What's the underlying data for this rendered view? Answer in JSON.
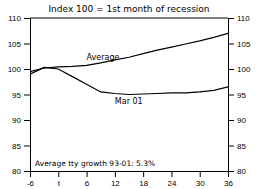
{
  "chart_data": {
    "type": "line",
    "title": "Index 100 = 1st month of recession",
    "x": [
      -6,
      -3,
      0,
      3,
      6,
      9,
      12,
      15,
      18,
      21,
      24,
      27,
      30,
      33,
      36
    ],
    "series": [
      {
        "name": "Average",
        "color": "#000000",
        "values": [
          99.5,
          100.2,
          100.4,
          100.5,
          100.7,
          101.2,
          101.8,
          102.3,
          103.0,
          103.7,
          104.3,
          104.9,
          105.5,
          106.2,
          107.0
        ]
      },
      {
        "name": "Mar 01",
        "color": "#000000",
        "values": [
          99.0,
          100.3,
          100.0,
          98.5,
          97.0,
          95.5,
          95.2,
          95.0,
          95.1,
          95.2,
          95.3,
          95.3,
          95.5,
          95.8,
          96.5
        ]
      }
    ],
    "annotations": [
      "Average tty growth 93-01: 5.3%"
    ],
    "xlim": [
      -6,
      36
    ],
    "xticks": [
      -6,
      {
        "value": 0,
        "label": "t"
      },
      6,
      12,
      18,
      24,
      30,
      36
    ],
    "ylim": [
      80,
      110
    ],
    "yticks": [
      80,
      85,
      90,
      95,
      100,
      105,
      110
    ],
    "y2lim": [
      80,
      110
    ],
    "y2ticks": [
      80,
      85,
      90,
      95,
      100,
      105,
      110
    ],
    "grid": false
  }
}
